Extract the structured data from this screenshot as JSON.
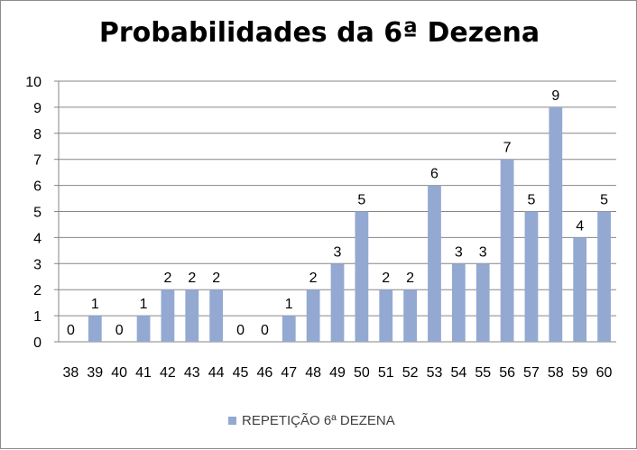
{
  "chart_data": {
    "type": "bar",
    "title": "Probabilidades da 6ª Dezena",
    "xlabel": "",
    "ylabel": "",
    "categories": [
      "38",
      "39",
      "40",
      "41",
      "42",
      "43",
      "44",
      "45",
      "46",
      "47",
      "48",
      "49",
      "50",
      "51",
      "52",
      "53",
      "54",
      "55",
      "56",
      "57",
      "58",
      "59",
      "60"
    ],
    "series": [
      {
        "name": "REPETIÇÃO 6ª DEZENA",
        "values": [
          0,
          1,
          0,
          1,
          2,
          2,
          2,
          0,
          0,
          1,
          2,
          3,
          5,
          2,
          2,
          6,
          3,
          3,
          7,
          5,
          9,
          4,
          5
        ],
        "color": "#94a9d1"
      }
    ],
    "ylim": [
      0,
      10
    ],
    "yticks": [
      "0",
      "1",
      "2",
      "3",
      "4",
      "5",
      "6",
      "7",
      "8",
      "9",
      "10"
    ],
    "grid": true,
    "data_labels": true,
    "legend": "bottom"
  }
}
